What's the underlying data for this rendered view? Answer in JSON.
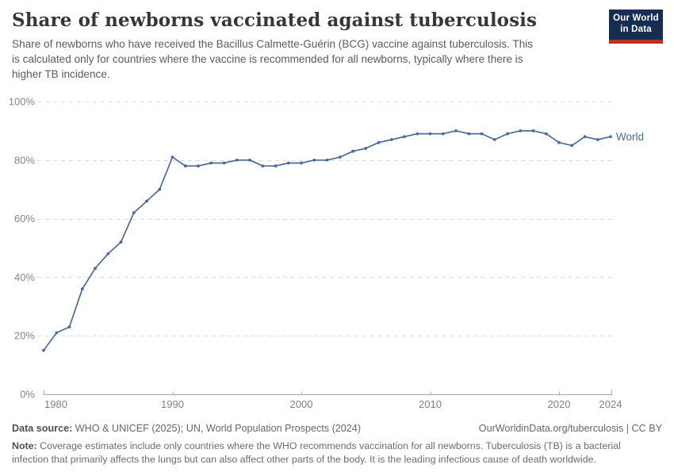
{
  "header": {
    "title": "Share of newborns vaccinated against tuberculosis",
    "subtitle": "Share of newborns who have received the Bacillus Calmette-Guérin (BCG) vaccine against tuberculosis. This\nis calculated only for countries where the vaccine is recommended for all newborns, typically where there is\nhigher TB incidence.",
    "logo": {
      "line1": "Our World",
      "line2": "in Data",
      "bg_color": "#142d50",
      "accent_color": "#be2d28"
    }
  },
  "chart_data": {
    "type": "line",
    "title": "Share of newborns vaccinated against tuberculosis",
    "xlabel": "",
    "ylabel": "",
    "xlim": [
      1980,
      2024
    ],
    "ylim": [
      0,
      100
    ],
    "grid": true,
    "legend_position": "end-of-line",
    "x_ticks": [
      1980,
      1990,
      2000,
      2010,
      2020,
      2024
    ],
    "y_ticks": {
      "values": [
        0,
        20,
        40,
        60,
        80,
        100
      ],
      "labels": [
        "0%",
        "20%",
        "40%",
        "60%",
        "80%",
        "100%"
      ]
    },
    "x": [
      1980,
      1981,
      1982,
      1983,
      1984,
      1985,
      1986,
      1987,
      1988,
      1989,
      1990,
      1991,
      1992,
      1993,
      1994,
      1995,
      1996,
      1997,
      1998,
      1999,
      2000,
      2001,
      2002,
      2003,
      2004,
      2005,
      2006,
      2007,
      2008,
      2009,
      2010,
      2011,
      2012,
      2013,
      2014,
      2015,
      2016,
      2017,
      2018,
      2019,
      2020,
      2021,
      2022,
      2023,
      2024
    ],
    "series": [
      {
        "name": "World",
        "color": "#4C6A9C",
        "values": [
          15,
          21,
          23,
          36,
          43,
          48,
          52,
          62,
          66,
          70,
          81,
          78,
          78,
          79,
          79,
          80,
          80,
          78,
          78,
          79,
          79,
          80,
          80,
          81,
          83,
          84,
          86,
          87,
          88,
          89,
          89,
          89,
          90,
          89,
          89,
          87,
          89,
          90,
          90,
          89,
          86,
          85,
          88,
          87,
          88
        ]
      }
    ]
  },
  "footer": {
    "data_source_label": "Data source:",
    "data_source_value": "WHO & UNICEF (2025); UN, World Population Prospects (2024)",
    "attribution": "OurWorldinData.org/tuberculosis | CC BY",
    "note_label": "Note:",
    "note_value": "Coverage estimates include only countries where the WHO recommends vaccination for all newborns. Tuberculosis (TB) is a bacterial\ninfection that primarily affects the lungs but can also affect other parts of the body. It is the leading infectious cause of death worldwide."
  }
}
